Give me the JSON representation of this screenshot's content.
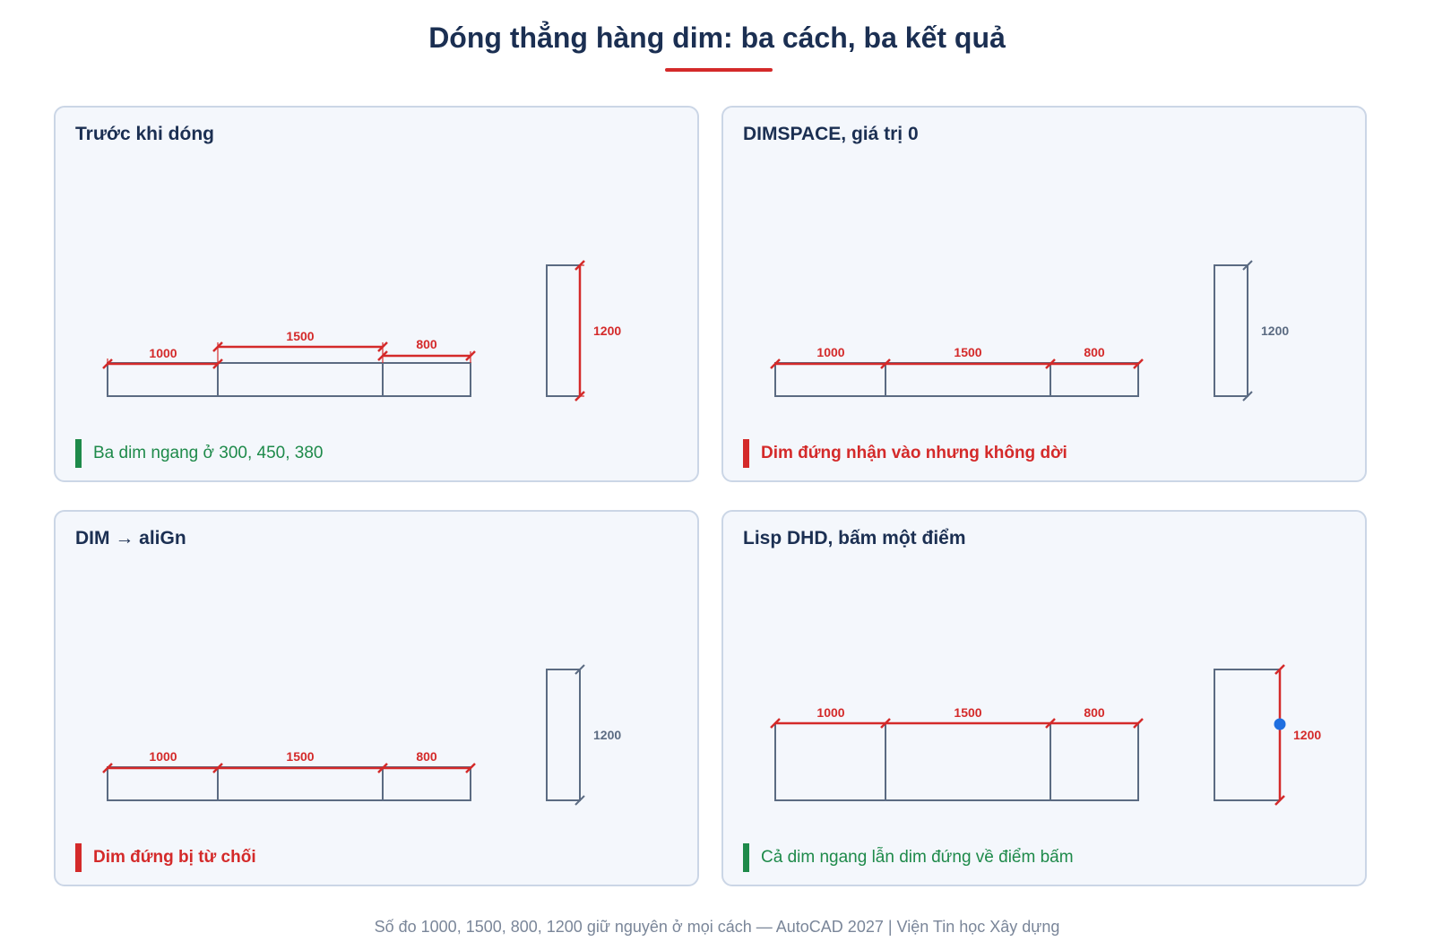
{
  "title": "Dóng thẳng hàng dim: ba cách, ba kết quả",
  "colors": {
    "dim_active": "#d42a2a",
    "dim_inactive": "#5b6b82",
    "outline": "#5b6b82",
    "success": "#1e8a4a",
    "failure": "#d42a2a",
    "pick_point": "#1f6fe0"
  },
  "dimension_values": {
    "horizontal": [
      "1000",
      "1500",
      "800"
    ],
    "vertical": "1200"
  },
  "panels": [
    {
      "id": "before",
      "title": "Trước khi dóng",
      "horizontal_dim_offsets": [
        300,
        450,
        380
      ],
      "horizontal_dims_color": "red",
      "vertical_dim_color": "red",
      "pick_point": false,
      "note": {
        "text": "Ba dim ngang ở 300, 450, 380",
        "status": "ok"
      }
    },
    {
      "id": "dimspace",
      "title": "DIMSPACE, giá trị 0",
      "horizontal_dims_color": "red",
      "vertical_dim_color": "gray",
      "pick_point": false,
      "note": {
        "text": "Dim đứng nhận vào nhưng không dời",
        "status": "bad"
      }
    },
    {
      "id": "align",
      "title": "DIM → aliGn",
      "horizontal_dims_color": "red",
      "vertical_dim_color": "gray",
      "pick_point": false,
      "note": {
        "text": "Dim đứng bị từ chối",
        "status": "bad"
      }
    },
    {
      "id": "lisp",
      "title": "Lisp DHD, bấm một điểm",
      "horizontal_dims_color": "red",
      "vertical_dim_color": "red",
      "pick_point": true,
      "note": {
        "text": "Cả dim ngang lẫn dim đứng về điểm bấm",
        "status": "ok"
      }
    }
  ],
  "footer": "Số đo 1000, 1500, 800, 1200 giữ nguyên ở mọi cách — AutoCAD 2027 | Viện Tin học Xây dựng"
}
